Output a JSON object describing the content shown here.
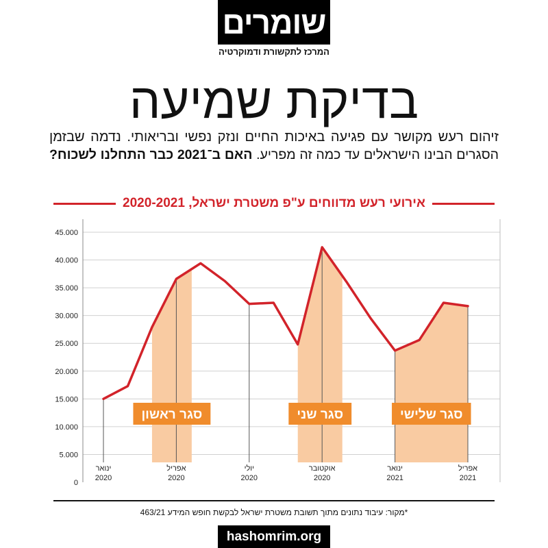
{
  "logo": {
    "name": "שומרים",
    "tagline": "המרכז לתקשורת ודמוקרטיה"
  },
  "title": "בדיקת שמיעה",
  "intro": {
    "line1": "זיהום רעש מקושר עם פגיעה באיכות החיים ונזק נפשי ובריאותי. נדמה שבזמן",
    "line2_regular": "הסגרים הבינו הישראלים עד כמה זה מפריע.",
    "line2_bold": "האם ב־2021 כבר התחלנו לשכוח?"
  },
  "colors": {
    "accent_red": "#d2232a",
    "lockdown_shade": "#f9cba2",
    "lockdown_label": "#f08c2c"
  },
  "chart_data": {
    "type": "line",
    "title": "אירועי רעש מדווחים ע\"פ משטרת ישראל, 2020-2021",
    "x": [
      "2020-01",
      "2020-02",
      "2020-03",
      "2020-04",
      "2020-05",
      "2020-06",
      "2020-07",
      "2020-08",
      "2020-09",
      "2020-10",
      "2020-11",
      "2020-12",
      "2021-01",
      "2021-02",
      "2021-03",
      "2021-04"
    ],
    "series": [
      {
        "values": [
          15000,
          17300,
          27900,
          36600,
          39400,
          36200,
          32100,
          32300,
          24800,
          42300,
          36100,
          29500,
          23700,
          25600,
          32300,
          31700
        ]
      }
    ],
    "xlim": [
      "2020-01",
      "2021-04"
    ],
    "ylim": [
      0,
      45000
    ],
    "yticks": [
      0,
      5000,
      10000,
      15000,
      20000,
      25000,
      30000,
      35000,
      40000,
      45000
    ],
    "ytick_labels": [
      "0",
      "5.000",
      "10.000",
      "15.000",
      "20.000",
      "25.000",
      "30.000",
      "35.000",
      "40.000",
      "45.000"
    ],
    "xticks": [
      {
        "x": "2020-01",
        "month": "ינואר",
        "year": "2020"
      },
      {
        "x": "2020-04",
        "month": "אפריל",
        "year": "2020"
      },
      {
        "x": "2020-07",
        "month": "יולי",
        "year": "2020"
      },
      {
        "x": "2020-10",
        "month": "אוקטובר",
        "year": "2020"
      },
      {
        "x": "2021-01",
        "month": "ינואר",
        "year": "2021"
      },
      {
        "x": "2021-04",
        "month": "אפריל",
        "year": "2021"
      }
    ],
    "grid": true,
    "shaded_periods": [
      {
        "label": "סגר ראשון",
        "start": "2020-03-01",
        "end": "2020-04-20"
      },
      {
        "label": "סגר שני",
        "start": "2020-09-01",
        "end": "2020-10-26"
      },
      {
        "label": "סגר שלישי",
        "start": "2021-01-01",
        "end": "2021-04-01"
      }
    ]
  },
  "source_note": "*מקור: עיבוד נתונים מתוך תשובת משטרת ישראל לבקשת חופש המידע 463/21",
  "footer": {
    "url": "hashomrim.org"
  }
}
